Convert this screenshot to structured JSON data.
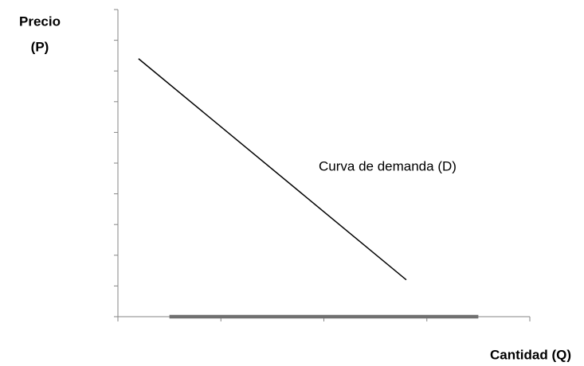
{
  "chart_data": {
    "type": "line",
    "ylabel": [
      "Precio",
      "(P)"
    ],
    "xlabel": "Cantidad (Q)",
    "annotation": "Curva de demanda (D)",
    "xlim": [
      0,
      4
    ],
    "xticks": [
      0,
      1,
      2,
      3,
      4
    ],
    "ylim": [
      0,
      10
    ],
    "yticks": [
      0,
      1,
      2,
      3,
      4,
      5,
      6,
      7,
      8,
      9,
      10
    ],
    "tick_labels": false,
    "series": [
      {
        "color": "#000000",
        "x": [
          0.2,
          2.8
        ],
        "values": [
          8.4,
          1.2
        ]
      },
      {
        "color": "#707070",
        "x": [
          0.5,
          3.5
        ],
        "values": [
          0,
          0
        ]
      }
    ]
  }
}
